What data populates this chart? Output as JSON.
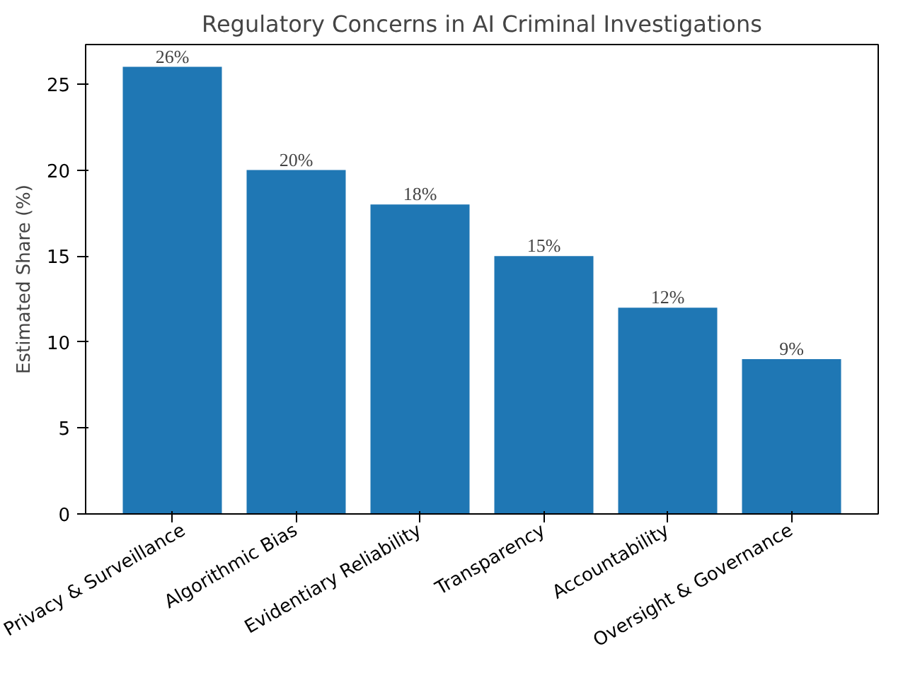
{
  "chart_data": {
    "type": "bar",
    "title": "Regulatory Concerns in AI Criminal Investigations",
    "ylabel": "Estimated Share (%)",
    "categories": [
      "Privacy & Surveillance",
      "Algorithmic Bias",
      "Evidentiary Reliability",
      "Transparency",
      "Accountability",
      "Oversight & Governance"
    ],
    "values": [
      26,
      20,
      18,
      15,
      12,
      9
    ],
    "value_labels": [
      "26%",
      "20%",
      "18%",
      "15%",
      "12%",
      "9%"
    ],
    "color": "#1f77b4",
    "ylim": [
      0,
      27.3
    ],
    "yticks": [
      0,
      5,
      10,
      15,
      20,
      25
    ],
    "grid": false
  }
}
